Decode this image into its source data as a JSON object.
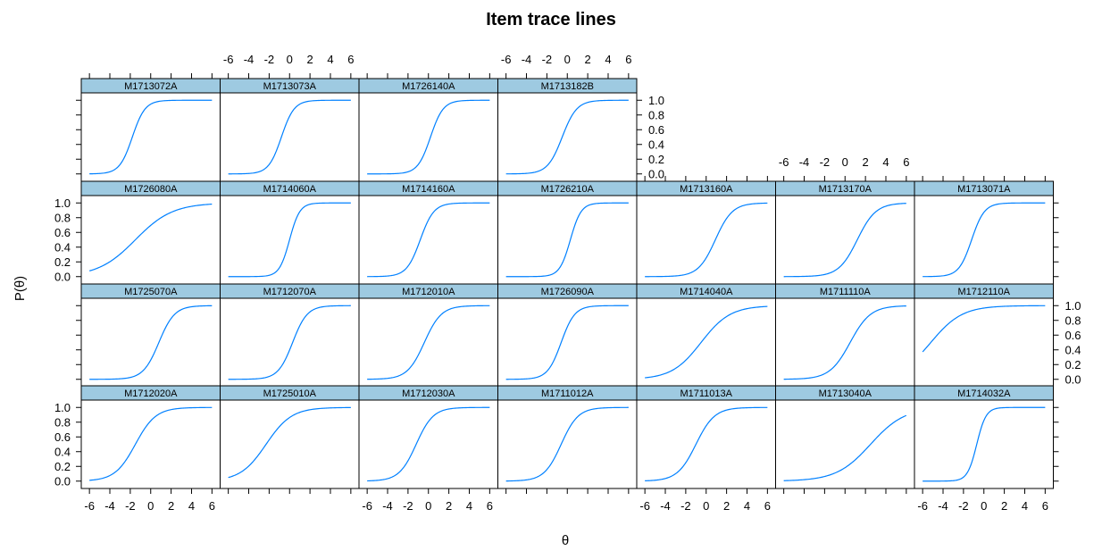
{
  "chart_data": {
    "type": "line",
    "title": "Item trace lines",
    "xlabel": "θ",
    "ylabel": "P(θ)",
    "xlim": [
      -6.8,
      6.8
    ],
    "ylim": [
      -0.1,
      1.1
    ],
    "xticks": [
      -6,
      -4,
      -2,
      0,
      2,
      4,
      6
    ],
    "yticks": [
      0.0,
      0.2,
      0.4,
      0.6,
      0.8,
      1.0
    ],
    "xtick_labels": [
      "-6",
      "-4",
      "-2",
      "0",
      "2",
      "4",
      "6"
    ],
    "ytick_labels": [
      "0.0",
      "0.2",
      "0.4",
      "0.6",
      "0.8",
      "1.0"
    ],
    "x_range": [
      -6,
      6
    ],
    "line_color": "#0080ff",
    "strip_color": "#9ecae1",
    "layout": {
      "columns": 7,
      "rows": 4
    },
    "panels": [
      {
        "name": "M1713072A",
        "row": 0,
        "col": 0,
        "a": 1.6,
        "b": -1.8
      },
      {
        "name": "M1713073A",
        "row": 0,
        "col": 1,
        "a": 1.6,
        "b": -0.8
      },
      {
        "name": "M1726140A",
        "row": 0,
        "col": 2,
        "a": 1.6,
        "b": 0.2
      },
      {
        "name": "M1713182B",
        "row": 0,
        "col": 3,
        "a": 1.4,
        "b": -0.5
      },
      {
        "name": "M1726080A",
        "row": 1,
        "col": 0,
        "a": 0.55,
        "b": -1.5
      },
      {
        "name": "M1714060A",
        "row": 1,
        "col": 1,
        "a": 2.0,
        "b": 0.0
      },
      {
        "name": "M1714160A",
        "row": 1,
        "col": 2,
        "a": 1.5,
        "b": -0.8
      },
      {
        "name": "M1726210A",
        "row": 1,
        "col": 3,
        "a": 1.9,
        "b": 0.3
      },
      {
        "name": "M1713160A",
        "row": 1,
        "col": 4,
        "a": 1.2,
        "b": 0.9
      },
      {
        "name": "M1713170A",
        "row": 1,
        "col": 5,
        "a": 1.1,
        "b": 1.2
      },
      {
        "name": "M1713071A",
        "row": 1,
        "col": 6,
        "a": 1.6,
        "b": -1.2
      },
      {
        "name": "M1725070A",
        "row": 2,
        "col": 0,
        "a": 1.3,
        "b": 0.8
      },
      {
        "name": "M1712070A",
        "row": 2,
        "col": 1,
        "a": 1.4,
        "b": 0.3
      },
      {
        "name": "M1712010A",
        "row": 2,
        "col": 2,
        "a": 1.2,
        "b": -0.4
      },
      {
        "name": "M1726090A",
        "row": 2,
        "col": 3,
        "a": 1.5,
        "b": -0.6
      },
      {
        "name": "M1714040A",
        "row": 2,
        "col": 4,
        "a": 0.7,
        "b": -0.5
      },
      {
        "name": "M1711110A",
        "row": 2,
        "col": 5,
        "a": 1.0,
        "b": 0.5
      },
      {
        "name": "M1712110A",
        "row": 2,
        "col": 6,
        "a": 0.65,
        "b": -5.2
      },
      {
        "name": "M1712020A",
        "row": 3,
        "col": 0,
        "a": 1.0,
        "b": -1.5
      },
      {
        "name": "M1725010A",
        "row": 3,
        "col": 1,
        "a": 0.8,
        "b": -2.3
      },
      {
        "name": "M1712030A",
        "row": 3,
        "col": 2,
        "a": 1.2,
        "b": -1.2
      },
      {
        "name": "M1711012A",
        "row": 3,
        "col": 3,
        "a": 1.2,
        "b": -0.6
      },
      {
        "name": "M1711013A",
        "row": 3,
        "col": 4,
        "a": 1.1,
        "b": -1.0
      },
      {
        "name": "M1713040A",
        "row": 3,
        "col": 5,
        "a": 0.6,
        "b": 2.5
      },
      {
        "name": "M1714032A",
        "row": 3,
        "col": 6,
        "a": 2.2,
        "b": -0.7
      }
    ]
  }
}
